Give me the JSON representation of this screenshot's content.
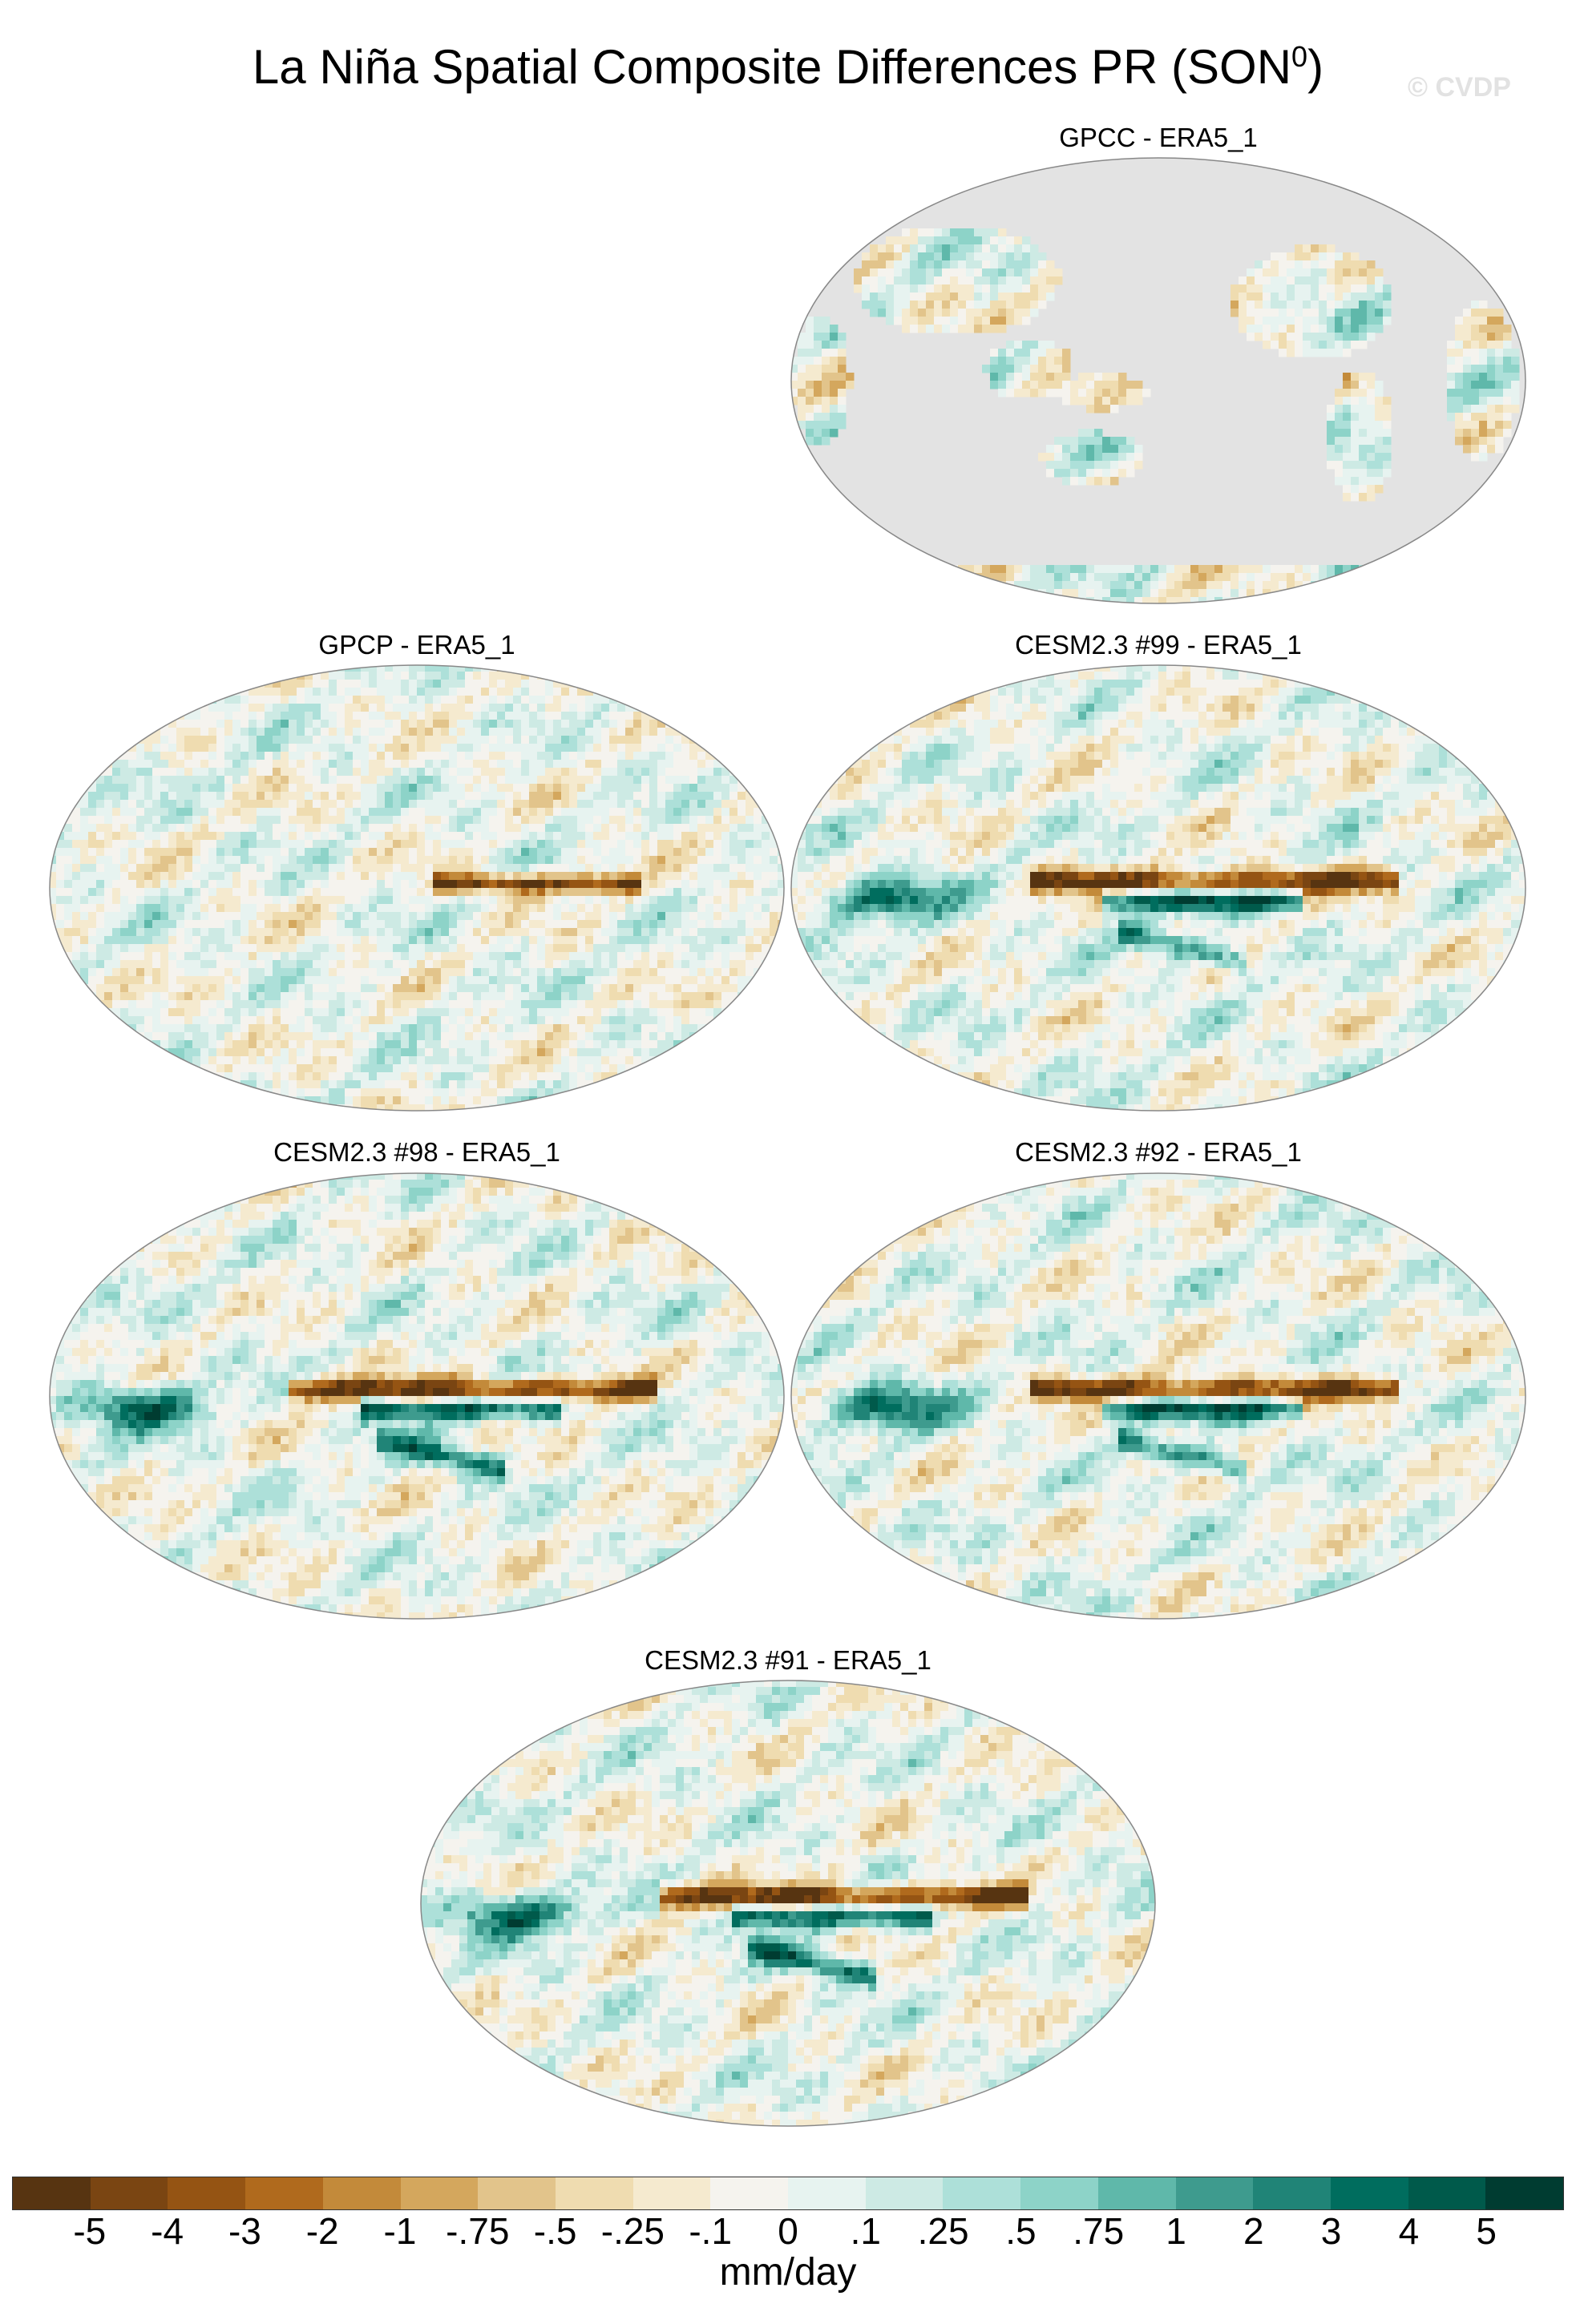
{
  "figure": {
    "title": "La Niña Spatial Composite Differences PR (SON",
    "title_superscript": "0",
    "title_close": ")",
    "watermark": "© CVDP"
  },
  "panels": [
    {
      "label": "GPCC - ERA5_1",
      "land_only": true,
      "pattern": "gpcc"
    },
    {
      "label": "GPCP - ERA5_1",
      "land_only": false,
      "pattern": "gpcp"
    },
    {
      "label": "CESM2.3 #99 - ERA5_1",
      "land_only": false,
      "pattern": "cesm"
    },
    {
      "label": "CESM2.3 #98 - ERA5_1",
      "land_only": false,
      "pattern": "cesm"
    },
    {
      "label": "CESM2.3 #92 - ERA5_1",
      "land_only": false,
      "pattern": "cesm"
    },
    {
      "label": "CESM2.3 #91 - ERA5_1",
      "land_only": false,
      "pattern": "cesm"
    }
  ],
  "colorbar": {
    "units": "mm/day",
    "tick_labels": [
      "-5",
      "-4",
      "-3",
      "-2",
      "-1",
      "-.75",
      "-.5",
      "-.25",
      "-.1",
      "0",
      ".1",
      ".25",
      ".5",
      ".75",
      "1",
      "2",
      "3",
      "4",
      "5"
    ],
    "colors": [
      "#573411",
      "#7a4512",
      "#955413",
      "#b06a1d",
      "#c38a3a",
      "#d4a75d",
      "#e2c48b",
      "#efdcb0",
      "#f5eacf",
      "#f5f3ee",
      "#e7f3f0",
      "#cdeae4",
      "#ade0d9",
      "#8dd3c8",
      "#5fb8aa",
      "#3e9b8e",
      "#208477",
      "#006d5e",
      "#005a4b",
      "#003c31"
    ],
    "missing_color": "#e3e3e3"
  }
}
